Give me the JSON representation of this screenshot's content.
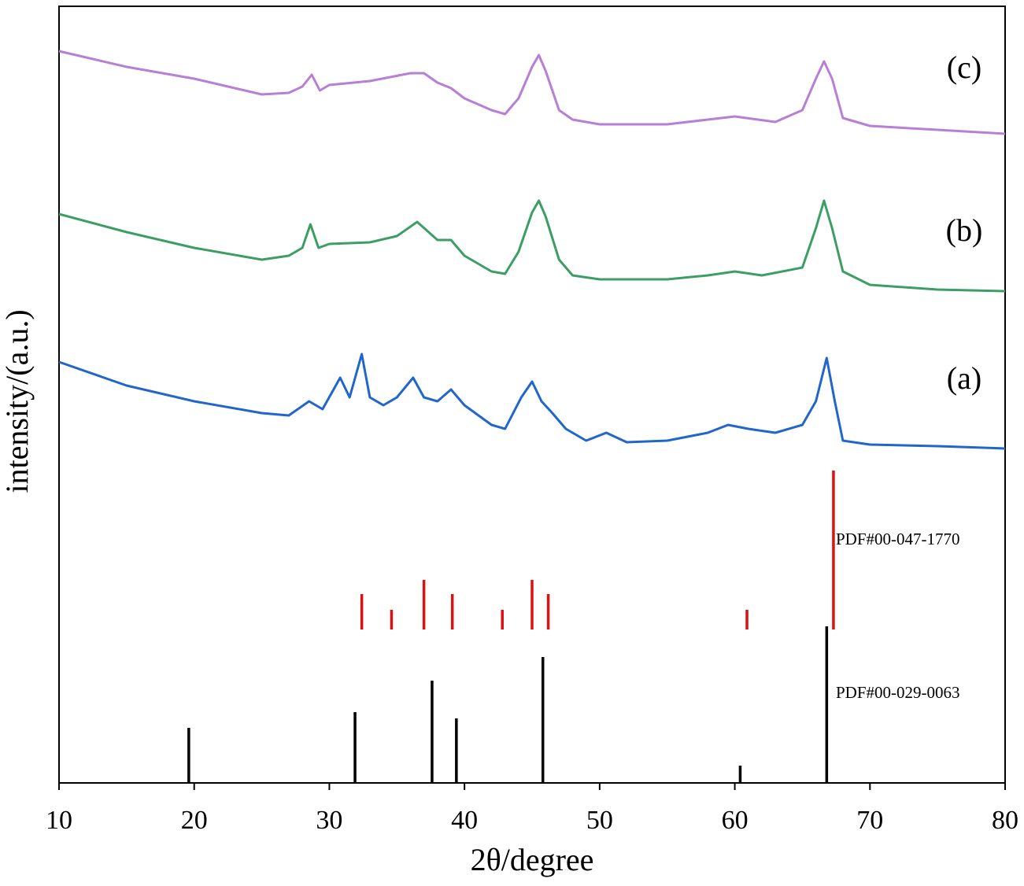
{
  "chart_data": {
    "type": "line",
    "xlabel": "2θ/degree",
    "ylabel": "intensity/(a.u.)",
    "xlim": [
      10,
      80
    ],
    "xticks": [
      10,
      20,
      30,
      40,
      50,
      60,
      70,
      80
    ],
    "ylim": [
      0,
      987
    ],
    "series": [
      {
        "name": "(c)",
        "color": "#b77fd6",
        "x": [
          10,
          15,
          20,
          25,
          27,
          28,
          28.7,
          29.3,
          30,
          33,
          36,
          37,
          38,
          39,
          40,
          42,
          43,
          44,
          45,
          45.5,
          46,
          47,
          48,
          50,
          55,
          58,
          60,
          63,
          65,
          66,
          66.6,
          67.2,
          68,
          70,
          75,
          80
        ],
        "values": [
          930,
          910,
          895,
          875,
          877,
          885,
          900,
          880,
          887,
          892,
          902,
          902,
          890,
          883,
          870,
          855,
          850,
          870,
          910,
          925,
          905,
          855,
          843,
          837,
          837,
          843,
          847,
          840,
          855,
          895,
          917,
          895,
          845,
          835,
          830,
          825
        ]
      },
      {
        "name": "(b)",
        "color": "#3d9e65",
        "x": [
          10,
          15,
          20,
          25,
          27,
          28,
          28.6,
          29.2,
          30,
          33,
          35,
          36.5,
          38,
          39,
          40,
          42,
          43,
          44,
          45,
          45.5,
          46,
          47,
          48,
          50,
          55,
          58,
          60,
          62,
          65,
          66,
          66.6,
          67.2,
          68,
          70,
          75,
          80
        ],
        "values": [
          723,
          700,
          680,
          665,
          670,
          680,
          710,
          680,
          685,
          687,
          695,
          713,
          690,
          690,
          670,
          650,
          647,
          675,
          725,
          740,
          720,
          665,
          645,
          640,
          640,
          645,
          650,
          645,
          655,
          705,
          740,
          705,
          650,
          633,
          627,
          625
        ]
      },
      {
        "name": "(a)",
        "color": "#2266cc",
        "x": [
          10,
          15,
          20,
          25,
          27,
          28.5,
          29.5,
          30.8,
          31.5,
          32.4,
          33,
          34,
          35,
          36.2,
          37,
          38,
          39,
          40,
          42,
          43,
          44.2,
          45,
          45.7,
          46.5,
          47.5,
          49,
          50.5,
          52,
          55,
          58,
          59.5,
          61,
          63,
          65,
          66,
          66.8,
          67.4,
          68,
          70,
          75,
          80
        ],
        "values": [
          535,
          505,
          485,
          470,
          467,
          485,
          475,
          515,
          490,
          545,
          490,
          480,
          490,
          515,
          490,
          485,
          500,
          480,
          455,
          450,
          490,
          510,
          485,
          470,
          450,
          435,
          445,
          433,
          435,
          445,
          455,
          450,
          445,
          455,
          485,
          540,
          485,
          435,
          430,
          428,
          425
        ]
      }
    ],
    "sticks": [
      {
        "name": "PDF#00-047-1770",
        "color": "#dd1111",
        "baseline": 195,
        "x": [
          32.4,
          34.6,
          37.0,
          39.1,
          42.8,
          45.0,
          46.2,
          60.9,
          67.3
        ],
        "values": [
          240,
          220,
          258,
          240,
          220,
          258,
          240,
          220,
          397
        ]
      },
      {
        "name": "PDF#00-029-0063",
        "color": "#000000",
        "baseline": 0,
        "x": [
          19.6,
          31.9,
          37.6,
          39.4,
          45.8,
          60.4,
          66.8
        ],
        "values": [
          70,
          90,
          130,
          82,
          160,
          22,
          199
        ]
      }
    ]
  }
}
